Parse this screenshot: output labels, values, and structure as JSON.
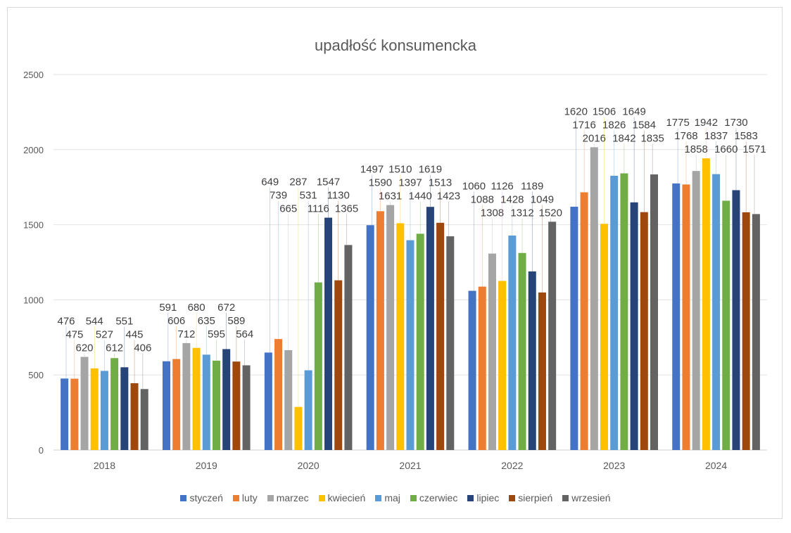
{
  "chart_data": {
    "type": "bar",
    "title": "upadłość konsumencka",
    "xlabel": "",
    "ylabel": "",
    "ylim": [
      0,
      2500
    ],
    "yticks": [
      0,
      500,
      1000,
      1500,
      2000,
      2500
    ],
    "grid": true,
    "legend_position": "bottom",
    "categories": [
      "2018",
      "2019",
      "2020",
      "2021",
      "2022",
      "2023",
      "2024"
    ],
    "series": [
      {
        "name": "styczeń",
        "color": "#4472c4",
        "values": [
          476,
          591,
          649,
          1497,
          1060,
          1620,
          1775
        ]
      },
      {
        "name": "luty",
        "color": "#ed7d31",
        "values": [
          475,
          606,
          739,
          1590,
          1088,
          1716,
          1768
        ]
      },
      {
        "name": "marzec",
        "color": "#a5a5a5",
        "values": [
          620,
          712,
          665,
          1631,
          1308,
          2016,
          1858
        ]
      },
      {
        "name": "kwiecień",
        "color": "#ffc000",
        "values": [
          544,
          680,
          287,
          1510,
          1126,
          1506,
          1942
        ]
      },
      {
        "name": "maj",
        "color": "#5b9bd5",
        "values": [
          527,
          635,
          531,
          1397,
          1428,
          1826,
          1837
        ]
      },
      {
        "name": "czerwiec",
        "color": "#70ad47",
        "values": [
          612,
          595,
          1116,
          1440,
          1312,
          1842,
          1660
        ]
      },
      {
        "name": "lipiec",
        "color": "#264478",
        "values": [
          551,
          672,
          1547,
          1619,
          1189,
          1649,
          1730
        ]
      },
      {
        "name": "sierpień",
        "color": "#9e480e",
        "values": [
          445,
          589,
          1130,
          1513,
          1049,
          1584,
          1583
        ]
      },
      {
        "name": "wrzesień",
        "color": "#636363",
        "values": [
          406,
          564,
          1365,
          1423,
          1520,
          1835,
          1571
        ]
      }
    ]
  }
}
